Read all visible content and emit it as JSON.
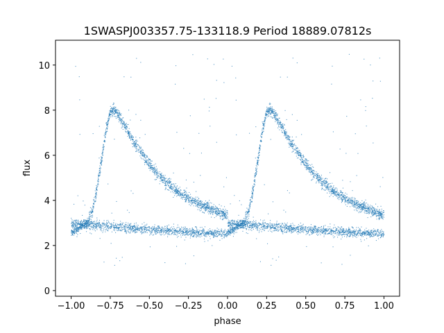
{
  "chart_data": {
    "type": "scatter",
    "title": "1SWASPJ003357.75-133118.9 Period 18889.07812s",
    "xlabel": "phase",
    "ylabel": "flux",
    "xlim": [
      -1.1,
      1.1
    ],
    "ylim": [
      -0.25,
      11.1
    ],
    "xticks": [
      -1.0,
      -0.75,
      -0.5,
      -0.25,
      0.0,
      0.25,
      0.5,
      0.75,
      1.0
    ],
    "xtick_labels": [
      "−1.00",
      "−0.75",
      "−0.50",
      "−0.25",
      "0.00",
      "0.25",
      "0.50",
      "0.75",
      "1.00"
    ],
    "yticks": [
      0,
      2,
      4,
      6,
      8,
      10
    ],
    "ytick_labels": [
      "0",
      "2",
      "4",
      "6",
      "8",
      "10"
    ],
    "grid": false,
    "point_color": "#1f77b4",
    "series": [
      {
        "phase_range": [
          -1.0,
          1.0
        ],
        "profile_phase": [
          0.0,
          0.05,
          0.1,
          0.13,
          0.16,
          0.19,
          0.22,
          0.25,
          0.27,
          0.3,
          0.35,
          0.4,
          0.45,
          0.5,
          0.55,
          0.6,
          0.65,
          0.7,
          0.75,
          0.8,
          0.85,
          0.9,
          0.95,
          1.0
        ],
        "profile_flux": [
          2.6,
          2.75,
          3.0,
          3.4,
          4.3,
          5.6,
          7.0,
          7.9,
          8.05,
          7.8,
          7.2,
          6.6,
          6.1,
          5.6,
          5.2,
          4.85,
          4.55,
          4.3,
          4.1,
          3.9,
          3.75,
          3.6,
          3.45,
          3.35
        ],
        "baseline_flux": [
          3.0,
          2.7,
          2.5
        ],
        "baseline_phase": [
          0.0,
          0.5,
          1.0
        ]
      }
    ]
  }
}
